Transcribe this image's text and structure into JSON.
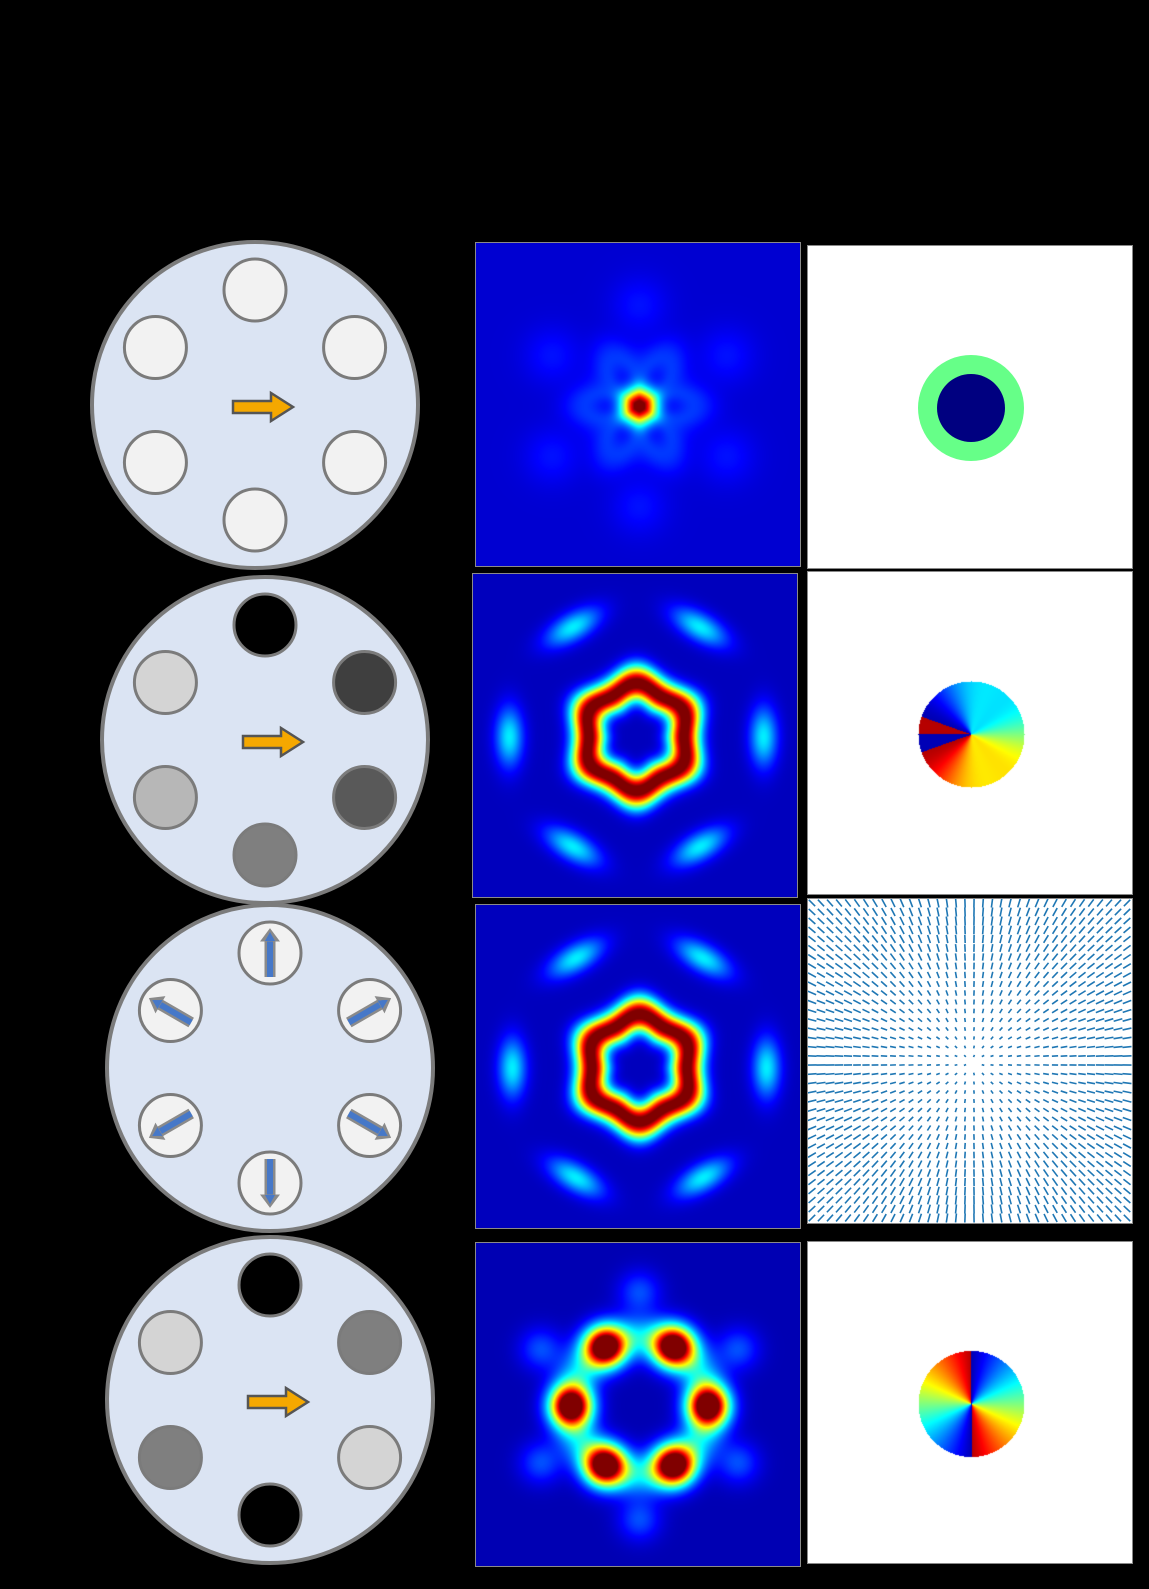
{
  "figure": {
    "background": "#000000",
    "fiber_fill": "#dbe4f3",
    "fiber_stroke": "#7b7b7b",
    "arrow_yellow": "#f5a800",
    "arrow_blue": "#4678c8",
    "jet_colormap": [
      "#00008f",
      "#0000ff",
      "#00ffff",
      "#ffff00",
      "#ff0000",
      "#800000"
    ]
  },
  "rows": [
    {
      "fiber": {
        "type": "polarization",
        "core_shades": [
          "#f2f2f2",
          "#f2f2f2",
          "#f2f2f2",
          "#f2f2f2",
          "#f2f2f2",
          "#f2f2f2"
        ]
      },
      "intensity": {
        "pattern": "central-spot"
      },
      "phase": {
        "pattern": "flat-phase-disk",
        "inner": "#000080",
        "outer": "#66ff88"
      }
    },
    {
      "fiber": {
        "type": "polarization",
        "core_shades": [
          "#000000",
          "#3f3f3f",
          "#595959",
          "#7f7f7f",
          "#b7b7b7",
          "#d4d4d4"
        ]
      },
      "intensity": {
        "pattern": "hexagonal-donut"
      },
      "phase": {
        "pattern": "vortex-charge-1"
      }
    },
    {
      "fiber": {
        "type": "radial-polarization",
        "core_shades": [
          "#f2f2f2",
          "#f2f2f2",
          "#f2f2f2",
          "#f2f2f2",
          "#f2f2f2",
          "#f2f2f2"
        ]
      },
      "intensity": {
        "pattern": "hexagonal-donut"
      },
      "phase": {
        "pattern": "radial-vector-field",
        "vector_color": "#1f77b4"
      }
    },
    {
      "fiber": {
        "type": "polarization",
        "core_shades": [
          "#000000",
          "#7f7f7f",
          "#d4d4d4",
          "#000000",
          "#7f7f7f",
          "#d4d4d4"
        ]
      },
      "intensity": {
        "pattern": "six-lobe-ring"
      },
      "phase": {
        "pattern": "vortex-charge-2"
      }
    }
  ]
}
